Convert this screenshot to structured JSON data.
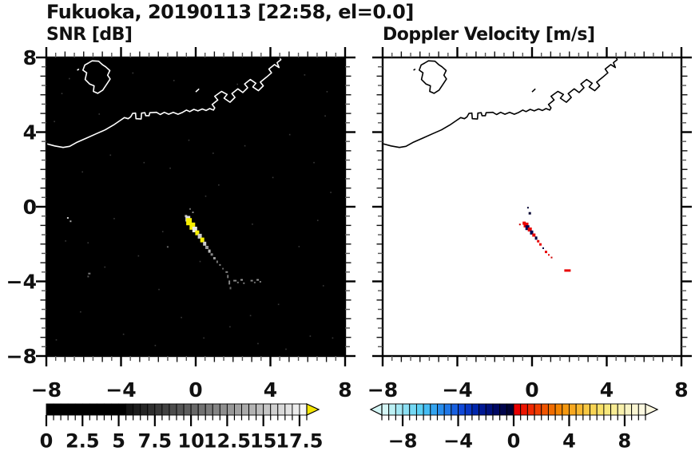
{
  "title": "Fukuoka, 20190113 [22:58, el=0.0]",
  "axes": {
    "min": -8,
    "max": 8,
    "major": 4,
    "minor": 0.5,
    "tick_values": [
      -8,
      -4,
      0,
      4,
      8
    ],
    "tick_labels": [
      "−8",
      "−4",
      "0",
      "4",
      "8"
    ]
  },
  "coastline": {
    "main": [
      [
        -8.0,
        3.38
      ],
      [
        -7.55,
        3.26
      ],
      [
        -7.1,
        3.18
      ],
      [
        -6.75,
        3.24
      ],
      [
        -6.35,
        3.46
      ],
      [
        -5.85,
        3.68
      ],
      [
        -5.35,
        3.9
      ],
      [
        -4.85,
        4.12
      ],
      [
        -4.4,
        4.38
      ],
      [
        -4.05,
        4.62
      ],
      [
        -3.82,
        4.78
      ],
      [
        -3.62,
        4.72
      ],
      [
        -3.48,
        4.82
      ],
      [
        -3.38,
        5.0
      ],
      [
        -3.22,
        5.02
      ],
      [
        -3.2,
        4.72
      ],
      [
        -2.92,
        4.7
      ],
      [
        -2.9,
        5.02
      ],
      [
        -2.72,
        5.04
      ],
      [
        -2.68,
        4.88
      ],
      [
        -2.5,
        4.88
      ],
      [
        -2.46,
        5.04
      ],
      [
        -2.1,
        5.06
      ],
      [
        -1.9,
        4.94
      ],
      [
        -1.68,
        5.06
      ],
      [
        -1.45,
        4.96
      ],
      [
        -1.2,
        5.06
      ],
      [
        -0.95,
        4.96
      ],
      [
        -0.7,
        5.06
      ],
      [
        -0.5,
        5.18
      ],
      [
        -0.32,
        5.1
      ],
      [
        -0.1,
        5.22
      ],
      [
        0.12,
        5.14
      ],
      [
        0.35,
        5.24
      ],
      [
        0.55,
        5.16
      ],
      [
        0.75,
        5.26
      ],
      [
        0.95,
        5.18
      ],
      [
        1.02,
        5.3
      ],
      [
        0.88,
        5.48
      ],
      [
        1.18,
        5.72
      ],
      [
        1.02,
        5.92
      ],
      [
        1.38,
        6.18
      ],
      [
        1.68,
        6.02
      ],
      [
        1.52,
        5.82
      ],
      [
        1.84,
        5.6
      ],
      [
        2.1,
        5.86
      ],
      [
        1.94,
        6.06
      ],
      [
        2.26,
        6.32
      ],
      [
        2.52,
        6.12
      ],
      [
        2.78,
        6.38
      ],
      [
        2.62,
        6.58
      ],
      [
        2.92,
        6.82
      ],
      [
        3.22,
        6.62
      ],
      [
        3.06,
        6.42
      ],
      [
        3.36,
        6.22
      ],
      [
        3.62,
        6.48
      ],
      [
        3.46,
        6.68
      ],
      [
        3.78,
        6.94
      ],
      [
        4.06,
        7.18
      ],
      [
        3.92,
        7.38
      ],
      [
        4.22,
        7.62
      ],
      [
        4.46,
        7.46
      ],
      [
        4.36,
        7.72
      ],
      [
        4.56,
        7.88
      ],
      [
        4.5,
        8.0
      ]
    ],
    "island": [
      [
        -5.55,
        7.82
      ],
      [
        -5.2,
        7.8
      ],
      [
        -5.0,
        7.62
      ],
      [
        -4.82,
        7.5
      ],
      [
        -4.6,
        7.3
      ],
      [
        -4.72,
        7.05
      ],
      [
        -4.58,
        6.85
      ],
      [
        -4.78,
        6.55
      ],
      [
        -4.98,
        6.25
      ],
      [
        -5.25,
        6.08
      ],
      [
        -5.48,
        6.18
      ],
      [
        -5.44,
        6.48
      ],
      [
        -5.68,
        6.58
      ],
      [
        -5.92,
        6.82
      ],
      [
        -5.84,
        7.18
      ],
      [
        -6.04,
        7.32
      ],
      [
        -5.94,
        7.6
      ],
      [
        -5.75,
        7.7
      ]
    ],
    "islets": [
      [
        [
          -6.35,
          7.32
        ],
        [
          -6.25,
          7.38
        ]
      ],
      [
        [
          0.0,
          6.15
        ],
        [
          0.18,
          6.32
        ]
      ]
    ]
  },
  "chart_data": [
    {
      "type": "heatmap",
      "title": "SNR [dB]",
      "xlim": [
        -8,
        8
      ],
      "ylim": [
        -8,
        8
      ],
      "background": "#000000",
      "coast_color": "#ffffff",
      "grid": false,
      "colorbar": {
        "min": 0,
        "max": 18,
        "step": 0.5,
        "tick_values": [
          0,
          2.5,
          5,
          7.5,
          10,
          12.5,
          15,
          17.5
        ],
        "tick_labels": [
          "0",
          "2.5",
          "5",
          "7.5",
          "10",
          "12.5",
          "15",
          "17.5"
        ],
        "arrow_right": "#f5e600",
        "segments": [
          "#000000",
          "#000000",
          "#000000",
          "#000000",
          "#000000",
          "#000000",
          "#000000",
          "#000000",
          "#000000",
          "#000000",
          "#000000",
          "#131313",
          "#1c1c1c",
          "#262626",
          "#2f2f2f",
          "#393939",
          "#424242",
          "#4c4c4c",
          "#555555",
          "#5e5e5e",
          "#686868",
          "#717171",
          "#7b7b7b",
          "#848484",
          "#8e8e8e",
          "#979797",
          "#a1a1a1",
          "#aaaaaa",
          "#b3b3b3",
          "#bdbdbd",
          "#c6c6c6",
          "#d0d0d0",
          "#d9d9d9",
          "#e3e3e3",
          "#ececec",
          "#f6f6f6"
        ]
      },
      "echo_points": [
        [
          -0.3,
          -0.12,
          2,
          2,
          "#666666"
        ],
        [
          -0.15,
          -0.3,
          2,
          2,
          "#888888"
        ],
        [
          -0.52,
          -0.5,
          3,
          3,
          "#aaaaaa"
        ],
        [
          -0.42,
          -0.64,
          6,
          7,
          "#dddddd"
        ],
        [
          -0.36,
          -0.8,
          7,
          9,
          "#f6ee00"
        ],
        [
          -0.18,
          -1.04,
          7,
          9,
          "#f6ee00"
        ],
        [
          -0.05,
          -1.22,
          6,
          7,
          "#e8e8e8"
        ],
        [
          0.08,
          -1.4,
          5,
          6,
          "#f6ee00"
        ],
        [
          0.22,
          -1.58,
          5,
          6,
          "#cccccc"
        ],
        [
          0.35,
          -1.78,
          5,
          6,
          "#f6ee00"
        ],
        [
          0.48,
          -1.98,
          4,
          5,
          "#cccccc"
        ],
        [
          0.6,
          -2.18,
          4,
          4,
          "#999999"
        ],
        [
          0.73,
          -2.38,
          3,
          4,
          "#bbbbbb"
        ],
        [
          0.86,
          -2.56,
          3,
          3,
          "#888888"
        ],
        [
          1.0,
          -2.76,
          3,
          3,
          "#999999"
        ],
        [
          1.15,
          -2.95,
          2,
          3,
          "#777777"
        ],
        [
          1.3,
          -3.12,
          2,
          2,
          "#888888"
        ],
        [
          1.46,
          -3.32,
          2,
          2,
          "#666666"
        ],
        [
          1.66,
          -3.5,
          3,
          2,
          "#888888"
        ],
        [
          1.72,
          -3.74,
          2,
          4,
          "#777777"
        ],
        [
          1.8,
          -4.06,
          2,
          5,
          "#888888"
        ],
        [
          1.86,
          -4.36,
          2,
          3,
          "#666666"
        ],
        [
          2.1,
          -3.96,
          4,
          2,
          "#888888"
        ],
        [
          2.26,
          -4.06,
          2,
          2,
          "#777777"
        ],
        [
          2.46,
          -3.92,
          3,
          2,
          "#999999"
        ],
        [
          2.58,
          -4.1,
          2,
          2,
          "#777777"
        ],
        [
          3.0,
          -3.96,
          3,
          2,
          "#888888"
        ],
        [
          3.16,
          -4.06,
          2,
          2,
          "#666666"
        ],
        [
          3.32,
          -3.92,
          3,
          2,
          "#999999"
        ],
        [
          3.46,
          -4.02,
          2,
          2,
          "#777777"
        ],
        [
          -5.7,
          -3.58,
          3,
          2,
          "#777777"
        ],
        [
          -5.76,
          -3.74,
          2,
          2,
          "#555555"
        ],
        [
          -1.5,
          -2.15,
          2,
          2,
          "#666666"
        ],
        [
          -6.85,
          -0.6,
          2,
          2,
          "#cccccc"
        ],
        [
          -6.7,
          -0.78,
          2,
          2,
          "#aaaaaa"
        ]
      ],
      "speckle": [
        [
          -7.2,
          6.1
        ],
        [
          -3.4,
          7.2
        ],
        [
          2.2,
          6.6
        ],
        [
          5.8,
          7.1
        ],
        [
          6.9,
          4.9
        ],
        [
          -6.1,
          1.9
        ],
        [
          -2.8,
          2.4
        ],
        [
          0.9,
          2.9
        ],
        [
          4.1,
          1.6
        ],
        [
          7.2,
          0.8
        ],
        [
          -7.0,
          -1.8
        ],
        [
          -4.9,
          -3.2
        ],
        [
          -1.8,
          -1.3
        ],
        [
          3.0,
          -0.9
        ],
        [
          5.5,
          -2.1
        ],
        [
          6.8,
          -4.2
        ],
        [
          -6.2,
          -5.6
        ],
        [
          -3.9,
          -6.8
        ],
        [
          -0.8,
          -5.9
        ],
        [
          1.8,
          -6.4
        ],
        [
          4.4,
          -5.2
        ],
        [
          6.1,
          -6.9
        ],
        [
          -7.5,
          -7.1
        ],
        [
          -2.2,
          -7.4
        ],
        [
          0.4,
          -7.0
        ],
        [
          3.3,
          -7.3
        ],
        [
          7.3,
          -7.0
        ],
        [
          -5.2,
          5.0
        ],
        [
          -1.2,
          6.8
        ],
        [
          1.2,
          1.2
        ],
        [
          -0.4,
          3.6
        ],
        [
          2.6,
          3.3
        ],
        [
          -4.4,
          -0.6
        ],
        [
          -2.0,
          -4.4
        ],
        [
          0.2,
          -2.9
        ],
        [
          5.0,
          3.9
        ],
        [
          6.3,
          2.4
        ],
        [
          -7.6,
          4.6
        ],
        [
          -6.8,
          6.9
        ],
        [
          7.0,
          6.2
        ],
        [
          -5.8,
          -1.9
        ],
        [
          2.9,
          -5.8
        ],
        [
          -1.4,
          2.1
        ],
        [
          4.8,
          -7.6
        ],
        [
          0.5,
          0.6
        ],
        [
          -3.1,
          -2.6
        ],
        [
          6.5,
          -0.7
        ],
        [
          -4.6,
          2.8
        ]
      ]
    },
    {
      "type": "heatmap",
      "title": "Doppler Velocity [m/s]",
      "xlim": [
        -8,
        8
      ],
      "ylim": [
        -8,
        8
      ],
      "background": "#ffffff",
      "coast_color": "#000000",
      "grid": false,
      "colorbar": {
        "min": -9.5,
        "max": 9.5,
        "step": 0.5,
        "tick_values": [
          -8,
          -4,
          0,
          4,
          8
        ],
        "tick_labels": [
          "−8",
          "−4",
          "0",
          "4",
          "8"
        ],
        "arrow_left": "#d4f6f6",
        "arrow_right": "#fcf8e0",
        "segments": [
          "#d4f6f6",
          "#bcf0f4",
          "#a4e8f4",
          "#8ce0f4",
          "#74d8f4",
          "#5cd0f4",
          "#44bcf4",
          "#34a4f0",
          "#288cec",
          "#2078e8",
          "#1860e0",
          "#1048d8",
          "#0836c4",
          "#0026ac",
          "#001894",
          "#00107c",
          "#000864",
          "#00044c",
          "#000234",
          "#e80000",
          "#ec1400",
          "#f02800",
          "#f03c00",
          "#f05400",
          "#f06c00",
          "#f48400",
          "#f49810",
          "#f8a820",
          "#f8b830",
          "#f8c844",
          "#f8d454",
          "#f8e068",
          "#f8e87c",
          "#f8ec94",
          "#f8f0ac",
          "#f8f4c4",
          "#faf6d2",
          "#fcf8e0"
        ]
      },
      "echo_points": [
        [
          -0.22,
          -0.05,
          2,
          2,
          "#000030"
        ],
        [
          -0.12,
          -0.35,
          3,
          3,
          "#000030"
        ],
        [
          -0.65,
          -0.95,
          2,
          2,
          "#cc0000"
        ],
        [
          -0.42,
          -0.88,
          4,
          4,
          "#e80000"
        ],
        [
          -0.32,
          -0.98,
          6,
          6,
          "#e80000"
        ],
        [
          -0.25,
          -1.12,
          5,
          6,
          "#000050"
        ],
        [
          -0.12,
          -1.22,
          5,
          5,
          "#e80000"
        ],
        [
          -0.02,
          -1.38,
          4,
          5,
          "#000050"
        ],
        [
          0.1,
          -1.52,
          4,
          4,
          "#e80000"
        ],
        [
          0.22,
          -1.68,
          3,
          4,
          "#000040"
        ],
        [
          0.33,
          -1.85,
          3,
          3,
          "#e80000"
        ],
        [
          0.45,
          -2.02,
          3,
          3,
          "#e80000"
        ],
        [
          0.6,
          -2.22,
          2,
          2,
          "#000040"
        ],
        [
          0.75,
          -2.42,
          3,
          3,
          "#e80000"
        ],
        [
          0.9,
          -2.58,
          2,
          2,
          "#e80000"
        ],
        [
          1.05,
          -2.72,
          2,
          2,
          "#cc0000"
        ],
        [
          1.9,
          -3.42,
          8,
          3,
          "#e80000"
        ]
      ],
      "speckle": []
    }
  ]
}
